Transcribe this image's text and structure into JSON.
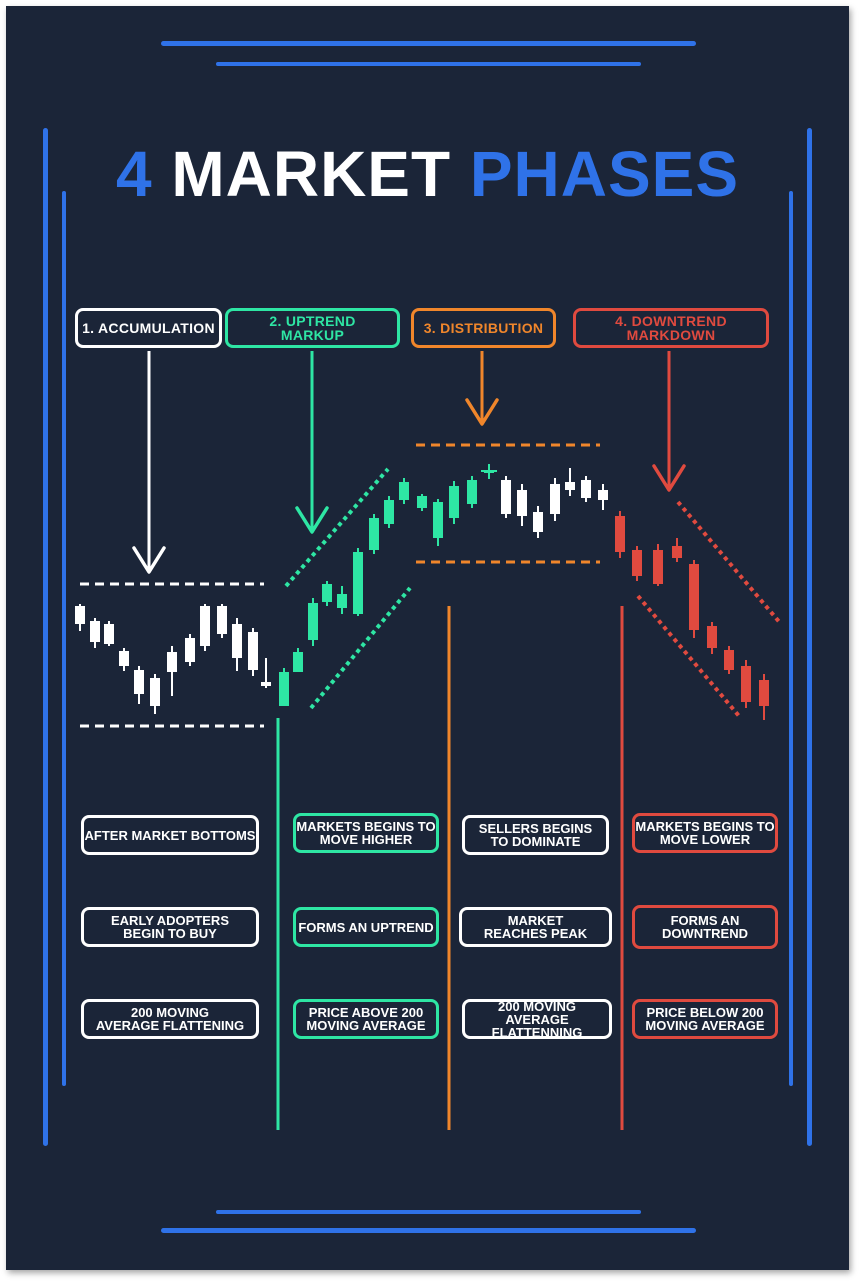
{
  "title": {
    "number": "4",
    "word1": "MARKET",
    "word2": "PHASES"
  },
  "phases": [
    {
      "label": "1. ACCUMULATION",
      "color": "#ffffff"
    },
    {
      "label": "2. UPTREND\nMARKUP",
      "color": "#2ee6a4"
    },
    {
      "label": "3. DISTRIBUTION",
      "color": "#f0862b"
    },
    {
      "label": "4. DOWNTREND\nMARKDOWN",
      "color": "#e04a3f"
    }
  ],
  "descriptions": [
    [
      "AFTER MARKET BOTTOMS",
      "EARLY ADOPTERS\nBEGIN TO BUY",
      "200 MOVING\nAVERAGE FLATTENING"
    ],
    [
      "MARKETS BEGINS TO\nMOVE HIGHER",
      "FORMS AN UPTREND",
      "PRICE ABOVE 200\nMOVING AVERAGE"
    ],
    [
      "SELLERS BEGINS\nTO DOMINATE",
      "MARKET\nREACHES PEAK",
      "200 MOVING AVERAGE\nFLATTENNING"
    ],
    [
      "MARKETS BEGINS TO\nMOVE LOWER",
      "FORMS AN\nDOWNTREND",
      "PRICE BELOW 200\nMOVING AVERAGE"
    ]
  ],
  "colors": {
    "background": "#1b2538",
    "accent": "#2f72e8",
    "green": "#2ee6a4",
    "orange": "#f0862b",
    "red": "#e04a3f",
    "white": "#ffffff"
  }
}
